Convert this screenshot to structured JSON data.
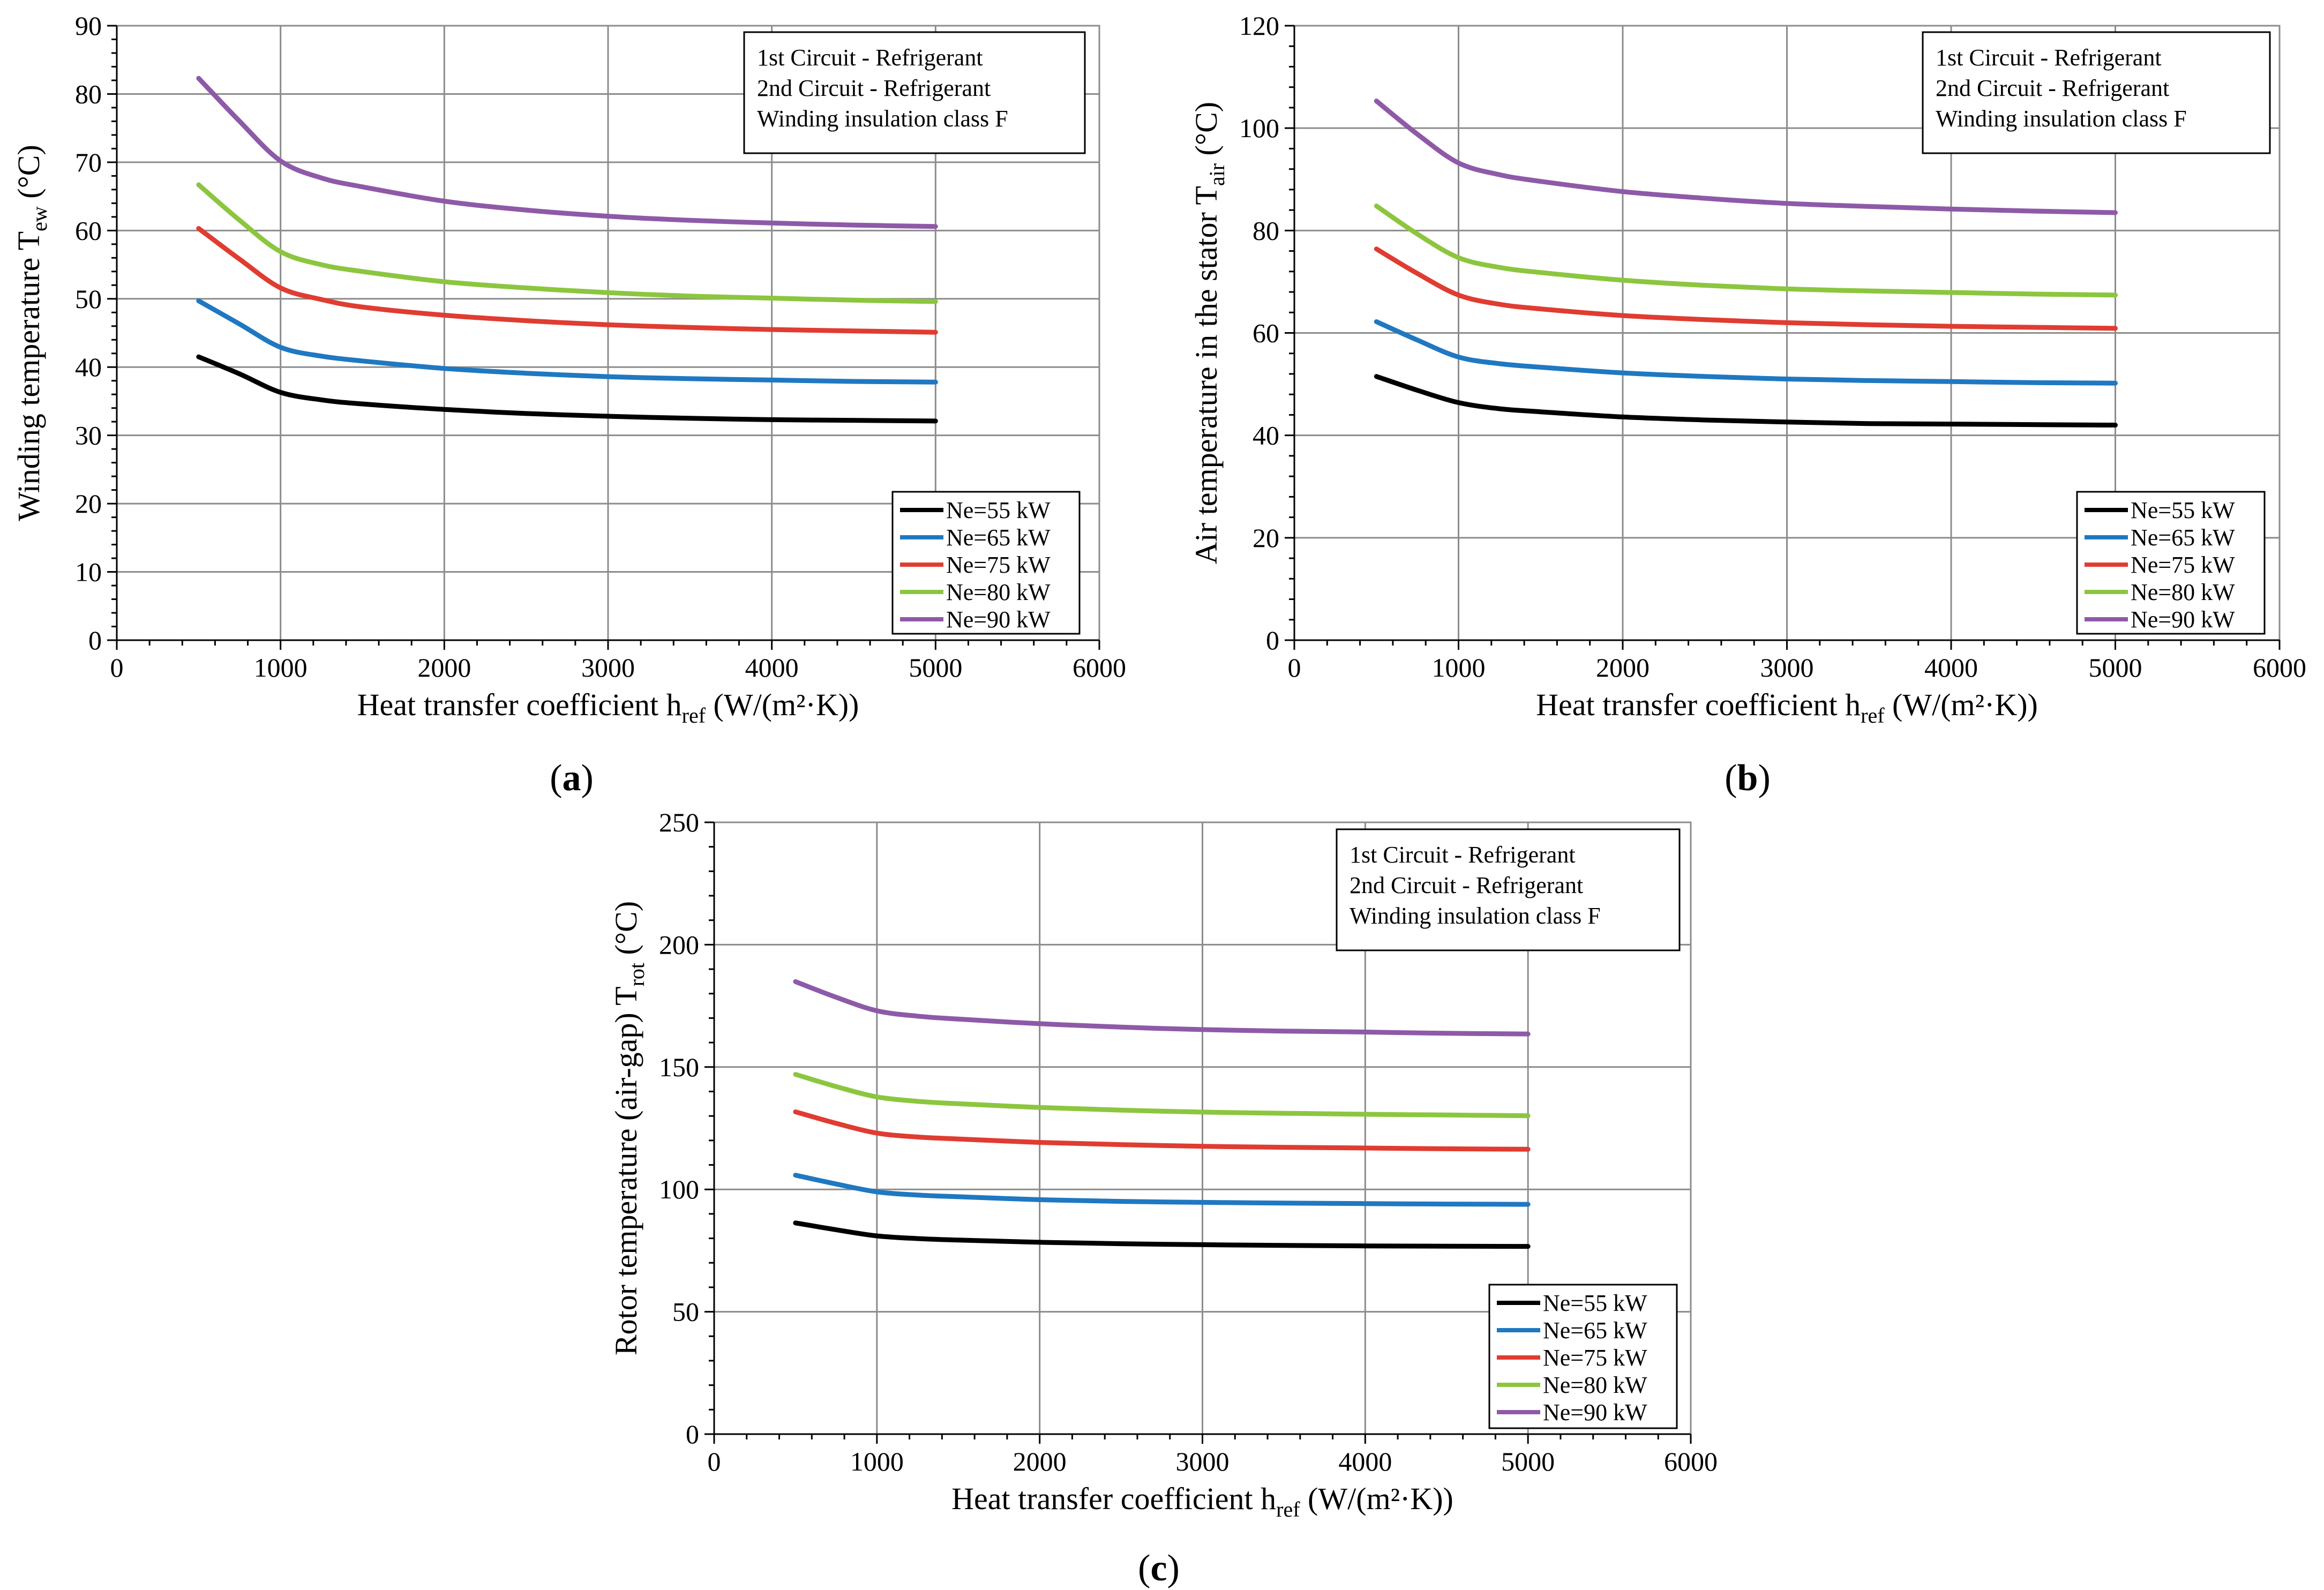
{
  "colors": {
    "Ne=55 kW": "#000000",
    "Ne=65 kW": "#1f78c1",
    "Ne=75 kW": "#e03c31",
    "Ne=80 kW": "#8cc63f",
    "Ne=90 kW": "#8e5aa8"
  },
  "chart_data": [
    {
      "id": "a",
      "panel_label": "a",
      "type": "line",
      "xlabel": "Heat transfer coefficient h",
      "xlabel_sub": "ref",
      "xlabel_unit": " (W/(m²·K))",
      "ylabel": "Winding temperature T",
      "ylabel_sub": "ew",
      "ylabel_unit": " (°C)",
      "xlim": [
        0,
        6000
      ],
      "ylim": [
        0,
        90
      ],
      "xticks": [
        0,
        1000,
        2000,
        3000,
        4000,
        5000,
        6000
      ],
      "xtick_labels": [
        "0",
        "1000",
        "2000",
        "3000",
        "4000",
        "5000",
        "6000"
      ],
      "yticks": [
        0,
        10,
        20,
        30,
        40,
        50,
        60,
        70,
        80,
        90
      ],
      "ytick_labels": [
        "0",
        "10",
        "20",
        "30",
        "40",
        "50",
        "60",
        "70",
        "80",
        "90"
      ],
      "grid": true,
      "legend_position": "bottom-right",
      "annotation": [
        "1st Circuit - Refrigerant",
        "2nd Circuit - Refrigerant",
        "Winding insulation class F"
      ],
      "x": [
        500,
        750,
        1000,
        1250,
        1500,
        2000,
        2500,
        3000,
        3500,
        4000,
        4500,
        5000
      ],
      "series": [
        {
          "name": "Ne=55 kW",
          "values": [
            41.5,
            39.0,
            36.3,
            35.2,
            34.6,
            33.8,
            33.2,
            32.8,
            32.5,
            32.3,
            32.2,
            32.1
          ]
        },
        {
          "name": "Ne=65 kW",
          "values": [
            49.7,
            46.3,
            42.9,
            41.6,
            40.9,
            39.8,
            39.1,
            38.6,
            38.3,
            38.1,
            37.9,
            37.8
          ]
        },
        {
          "name": "Ne=75 kW",
          "values": [
            60.3,
            55.8,
            51.6,
            49.9,
            48.8,
            47.6,
            46.8,
            46.2,
            45.8,
            45.5,
            45.3,
            45.1
          ]
        },
        {
          "name": "Ne=80 kW",
          "values": [
            66.7,
            61.5,
            56.9,
            55.0,
            54.0,
            52.5,
            51.6,
            50.9,
            50.4,
            50.1,
            49.8,
            49.6
          ]
        },
        {
          "name": "Ne=90 kW",
          "values": [
            82.3,
            76.0,
            70.2,
            67.7,
            66.4,
            64.3,
            63.0,
            62.1,
            61.5,
            61.1,
            60.8,
            60.6
          ]
        }
      ]
    },
    {
      "id": "b",
      "panel_label": "b",
      "type": "line",
      "xlabel": "Heat transfer coefficient h",
      "xlabel_sub": "ref",
      "xlabel_unit": " (W/(m²·K))",
      "ylabel": "Air temperature in the stator T",
      "ylabel_sub": "air",
      "ylabel_unit": " (°C)",
      "xlim": [
        0,
        6000
      ],
      "ylim": [
        0,
        120
      ],
      "xticks": [
        0,
        1000,
        2000,
        3000,
        4000,
        5000,
        6000
      ],
      "xtick_labels": [
        "0",
        "1000",
        "2000",
        "3000",
        "4000",
        "5000",
        "6000"
      ],
      "yticks": [
        0,
        20,
        40,
        60,
        80,
        100,
        120
      ],
      "ytick_labels": [
        "0",
        "20",
        "40",
        "60",
        "80",
        "100",
        "120"
      ],
      "grid": true,
      "legend_position": "bottom-right",
      "annotation": [
        "1st Circuit - Refrigerant",
        "2nd Circuit - Refrigerant",
        "Winding insulation class F"
      ],
      "x": [
        500,
        750,
        1000,
        1250,
        1500,
        2000,
        2500,
        3000,
        3500,
        4000,
        4500,
        5000
      ],
      "series": [
        {
          "name": "Ne=55 kW",
          "values": [
            51.5,
            48.8,
            46.4,
            45.2,
            44.6,
            43.6,
            43.0,
            42.6,
            42.3,
            42.2,
            42.1,
            42.0
          ]
        },
        {
          "name": "Ne=65 kW",
          "values": [
            62.2,
            58.6,
            55.3,
            54.0,
            53.3,
            52.2,
            51.5,
            51.0,
            50.7,
            50.5,
            50.3,
            50.2
          ]
        },
        {
          "name": "Ne=75 kW",
          "values": [
            76.4,
            71.6,
            67.4,
            65.6,
            64.7,
            63.4,
            62.6,
            62.0,
            61.6,
            61.3,
            61.1,
            60.9
          ]
        },
        {
          "name": "Ne=80 kW",
          "values": [
            84.8,
            79.3,
            74.7,
            72.8,
            71.8,
            70.3,
            69.3,
            68.6,
            68.2,
            67.9,
            67.6,
            67.4
          ]
        },
        {
          "name": "Ne=90 kW",
          "values": [
            105.3,
            98.8,
            93.2,
            90.9,
            89.6,
            87.6,
            86.3,
            85.3,
            84.7,
            84.2,
            83.8,
            83.5
          ]
        }
      ]
    },
    {
      "id": "c",
      "panel_label": "c",
      "type": "line",
      "xlabel": "Heat transfer coefficient h",
      "xlabel_sub": "ref",
      "xlabel_unit": " (W/(m²·K))",
      "ylabel": "Rotor temperature (air-gap) T",
      "ylabel_sub": "rot",
      "ylabel_unit": " (°C)",
      "xlim": [
        0,
        6000
      ],
      "ylim": [
        0,
        250
      ],
      "xticks": [
        0,
        1000,
        2000,
        3000,
        4000,
        5000,
        6000
      ],
      "xtick_labels": [
        "0",
        "1000",
        "2000",
        "3000",
        "4000",
        "5000",
        "6000"
      ],
      "yticks": [
        0,
        50,
        100,
        150,
        200,
        250
      ],
      "ytick_labels": [
        "0",
        "50",
        "100",
        "150",
        "200",
        "250"
      ],
      "grid": true,
      "legend_position": "bottom-right",
      "annotation": [
        "1st Circuit - Refrigerant",
        "2nd Circuit - Refrigerant",
        "Winding insulation class F"
      ],
      "x": [
        500,
        750,
        1000,
        1250,
        1500,
        2000,
        2500,
        3000,
        3500,
        4000,
        4500,
        5000
      ],
      "series": [
        {
          "name": "Ne=55 kW",
          "values": [
            86.3,
            83.5,
            81.0,
            79.9,
            79.3,
            78.4,
            77.8,
            77.4,
            77.1,
            76.9,
            76.8,
            76.7
          ]
        },
        {
          "name": "Ne=65 kW",
          "values": [
            105.8,
            102.2,
            99.0,
            97.7,
            97.0,
            95.8,
            95.1,
            94.7,
            94.4,
            94.2,
            94.0,
            93.9
          ]
        },
        {
          "name": "Ne=75 kW",
          "values": [
            131.7,
            127.0,
            123.0,
            121.4,
            120.6,
            119.2,
            118.3,
            117.6,
            117.2,
            116.9,
            116.6,
            116.4
          ]
        },
        {
          "name": "Ne=80 kW",
          "values": [
            147.0,
            142.0,
            137.8,
            136.0,
            135.0,
            133.5,
            132.4,
            131.6,
            131.1,
            130.7,
            130.4,
            130.1
          ]
        },
        {
          "name": "Ne=90 kW",
          "values": [
            184.9,
            178.5,
            173.0,
            170.8,
            169.6,
            167.7,
            166.3,
            165.3,
            164.7,
            164.3,
            163.8,
            163.5
          ]
        }
      ]
    }
  ]
}
